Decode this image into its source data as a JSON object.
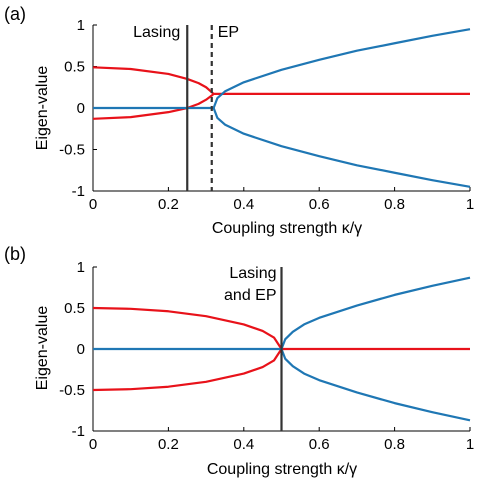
{
  "colors": {
    "red": "#e8121a",
    "blue": "#1f77b4",
    "marker": "#333333",
    "axis": "#000000"
  },
  "chart_data": [
    {
      "panel": "(a)",
      "type": "line",
      "xlabel": "Coupling strength κ/γ",
      "ylabel": "Eigen-value",
      "xlim": [
        0,
        1
      ],
      "ylim": [
        -1,
        1
      ],
      "xticks": [
        "0",
        "0.2",
        "0.4",
        "0.6",
        "0.8",
        "1"
      ],
      "yticks": [
        "1",
        "0.5",
        "0",
        "-0.5",
        "-1"
      ],
      "grid": false,
      "series": [
        {
          "color": "red",
          "x": [
            0,
            0.1,
            0.2,
            0.25,
            0.28,
            0.3,
            0.315,
            0.32,
            0.4,
            0.6,
            0.8,
            1.0
          ],
          "y": [
            0.49,
            0.47,
            0.41,
            0.35,
            0.3,
            0.25,
            0.19,
            0.17,
            0.17,
            0.17,
            0.17,
            0.17
          ]
        },
        {
          "color": "red",
          "x": [
            0,
            0.1,
            0.2,
            0.25,
            0.28,
            0.3,
            0.315,
            0.32
          ],
          "y": [
            -0.13,
            -0.11,
            -0.05,
            0.0,
            0.05,
            0.1,
            0.15,
            0.17
          ]
        },
        {
          "color": "blue",
          "x": [
            0,
            0.1,
            0.2,
            0.3,
            0.315,
            0.32
          ],
          "y": [
            0,
            0,
            0,
            0,
            0,
            0
          ]
        },
        {
          "color": "blue",
          "x": [
            0.32,
            0.33,
            0.35,
            0.4,
            0.5,
            0.6,
            0.7,
            0.8,
            0.9,
            1.0
          ],
          "y": [
            0.0,
            0.12,
            0.2,
            0.31,
            0.46,
            0.58,
            0.69,
            0.78,
            0.87,
            0.95
          ]
        },
        {
          "color": "blue",
          "x": [
            0.32,
            0.33,
            0.35,
            0.4,
            0.5,
            0.6,
            0.7,
            0.8,
            0.9,
            1.0
          ],
          "y": [
            0.0,
            -0.12,
            -0.2,
            -0.31,
            -0.46,
            -0.58,
            -0.69,
            -0.78,
            -0.87,
            -0.95
          ]
        }
      ],
      "annotations": [
        {
          "text": "Lasing",
          "x": 0.25,
          "style": "solid"
        },
        {
          "text": "EP",
          "x": 0.315,
          "style": "dashed"
        }
      ]
    },
    {
      "panel": "(b)",
      "type": "line",
      "xlabel": "Coupling strength κ/γ",
      "ylabel": "Eigen-value",
      "xlim": [
        0,
        1
      ],
      "ylim": [
        -1,
        1
      ],
      "xticks": [
        "0",
        "0.2",
        "0.4",
        "0.6",
        "0.8",
        "1"
      ],
      "yticks": [
        "1",
        "0.5",
        "0",
        "-0.5",
        "-1"
      ],
      "grid": false,
      "series": [
        {
          "color": "red",
          "x": [
            0,
            0.1,
            0.2,
            0.3,
            0.4,
            0.45,
            0.48,
            0.5,
            0.6,
            0.8,
            1.0
          ],
          "y": [
            0.5,
            0.49,
            0.46,
            0.4,
            0.3,
            0.22,
            0.14,
            0,
            0,
            0,
            0
          ]
        },
        {
          "color": "red",
          "x": [
            0,
            0.1,
            0.2,
            0.3,
            0.4,
            0.45,
            0.48,
            0.5
          ],
          "y": [
            -0.5,
            -0.49,
            -0.46,
            -0.4,
            -0.3,
            -0.22,
            -0.14,
            0
          ]
        },
        {
          "color": "blue",
          "x": [
            0,
            0.1,
            0.2,
            0.3,
            0.4,
            0.5
          ],
          "y": [
            0,
            0,
            0,
            0,
            0,
            0
          ]
        },
        {
          "color": "blue",
          "x": [
            0.5,
            0.51,
            0.53,
            0.56,
            0.6,
            0.7,
            0.8,
            0.9,
            1.0
          ],
          "y": [
            0,
            0.12,
            0.21,
            0.3,
            0.38,
            0.53,
            0.66,
            0.77,
            0.87
          ]
        },
        {
          "color": "blue",
          "x": [
            0.5,
            0.51,
            0.53,
            0.56,
            0.6,
            0.7,
            0.8,
            0.9,
            1.0
          ],
          "y": [
            0,
            -0.12,
            -0.21,
            -0.3,
            -0.38,
            -0.53,
            -0.66,
            -0.77,
            -0.87
          ]
        }
      ],
      "annotations": [
        {
          "text": "Lasing",
          "text2": "and EP",
          "x": 0.5,
          "style": "solid"
        }
      ]
    }
  ]
}
